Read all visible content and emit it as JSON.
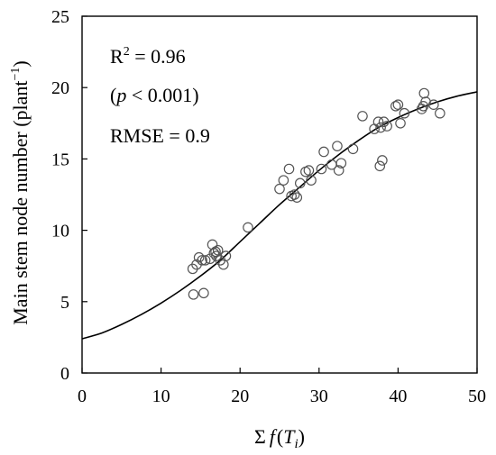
{
  "chart_data": {
    "type": "scatter",
    "xlabel_sigma": "Σ",
    "xlabel_f": "f",
    "xlabel_paren_open": "(",
    "xlabel_T": "T",
    "xlabel_sub": "i",
    "xlabel_paren_close": ")",
    "ylabel_main": "Main stem node number (plant",
    "ylabel_sup": "−1",
    "ylabel_close": ")",
    "xlim": [
      0,
      50
    ],
    "ylim": [
      0,
      25
    ],
    "xticks": [
      0,
      10,
      20,
      30,
      40,
      50
    ],
    "yticks": [
      0,
      5,
      10,
      15,
      20,
      25
    ],
    "grid": false,
    "annotations": {
      "r2_prefix": "R",
      "r2_sup": "2",
      "r2_value": " = 0.96",
      "p_open": "(",
      "p_italic": "p",
      "p_rest": " < 0.001)",
      "rmse": "RMSE = 0.9"
    },
    "series": [
      {
        "kind": "observed",
        "marker": "open-circle",
        "x": [
          14.0,
          14.5,
          14.8,
          15.2,
          15.6,
          16.2,
          16.5,
          16.9,
          17.2,
          17.5,
          17.9,
          18.2,
          17.0,
          16.7,
          14.1,
          15.4,
          21.0,
          25.0,
          25.5,
          26.2,
          26.5,
          26.9,
          27.2,
          27.6,
          28.3,
          28.7,
          29.0,
          30.3,
          30.6,
          31.6,
          32.3,
          32.5,
          32.8,
          34.3,
          35.5,
          37.0,
          37.5,
          37.8,
          38.2,
          38.6,
          38.0,
          37.7,
          39.7,
          40.0,
          40.3,
          40.8,
          43.3,
          43.5,
          43.0,
          43.2,
          44.5,
          45.3
        ],
        "y": [
          7.3,
          7.6,
          8.1,
          7.9,
          7.9,
          8.0,
          9.0,
          8.5,
          8.6,
          7.9,
          7.6,
          8.2,
          8.2,
          8.4,
          5.5,
          5.6,
          10.2,
          12.9,
          13.5,
          14.3,
          12.4,
          12.5,
          12.3,
          13.3,
          14.1,
          14.2,
          13.5,
          14.3,
          15.5,
          14.6,
          15.9,
          14.2,
          14.7,
          15.7,
          18.0,
          17.1,
          17.6,
          17.2,
          17.6,
          17.3,
          14.9,
          14.5,
          18.7,
          18.8,
          17.5,
          18.2,
          19.6,
          19.0,
          18.5,
          18.7,
          18.8,
          18.2
        ]
      },
      {
        "kind": "fitted",
        "line": "solid",
        "x": [
          0,
          2.5,
          5,
          7.5,
          10,
          12.5,
          15,
          17.5,
          20,
          22.5,
          25,
          27.5,
          30,
          32.5,
          35,
          37.5,
          40,
          42.5,
          45,
          47.5,
          50
        ],
        "y": [
          2.4,
          2.8,
          3.4,
          4.1,
          4.9,
          5.8,
          6.8,
          7.9,
          9.2,
          10.5,
          11.8,
          13.0,
          14.2,
          15.3,
          16.3,
          17.2,
          17.9,
          18.5,
          19.0,
          19.4,
          19.7
        ]
      }
    ]
  }
}
